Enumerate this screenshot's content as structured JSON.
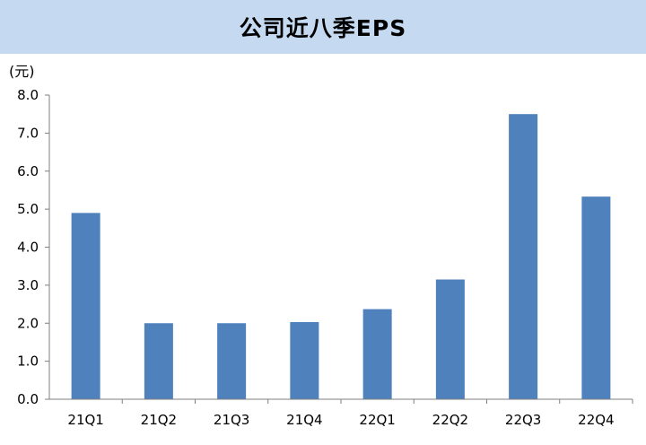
{
  "title": "公司近八季EPS",
  "unit_label": "(元)",
  "colors": {
    "title_bg": "#c5d9f1",
    "bar": "#4f81bd",
    "axis": "#7f7f7f"
  },
  "chart_data": {
    "type": "bar",
    "title": "公司近八季EPS",
    "ylabel": "(元)",
    "xlabel": "",
    "categories": [
      "21Q1",
      "21Q2",
      "21Q3",
      "21Q4",
      "22Q1",
      "22Q2",
      "22Q3",
      "22Q4"
    ],
    "values": [
      4.9,
      2.0,
      2.0,
      2.03,
      2.37,
      3.15,
      7.5,
      5.33
    ],
    "ylim": [
      0,
      8
    ],
    "yticks": [
      "0.0",
      "1.0",
      "2.0",
      "3.0",
      "4.0",
      "5.0",
      "6.0",
      "7.0",
      "8.0"
    ],
    "grid": false,
    "legend": "none"
  }
}
